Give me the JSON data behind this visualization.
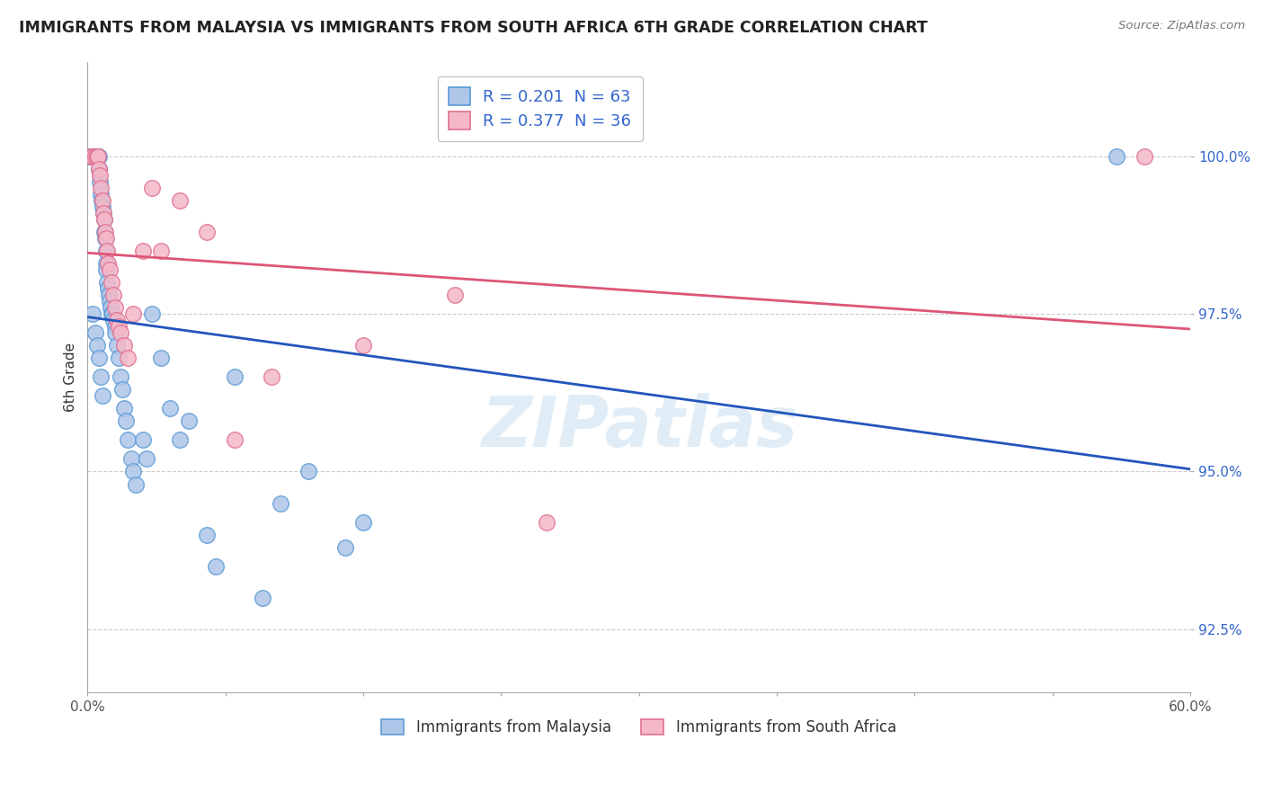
{
  "title": "IMMIGRANTS FROM MALAYSIA VS IMMIGRANTS FROM SOUTH AFRICA 6TH GRADE CORRELATION CHART",
  "source": "Source: ZipAtlas.com",
  "ylabel": "6th Grade",
  "xlim": [
    0.0,
    60.0
  ],
  "ylim": [
    91.5,
    101.5
  ],
  "yticks": [
    92.5,
    95.0,
    97.5,
    100.0
  ],
  "ytick_labels": [
    "92.5%",
    "95.0%",
    "97.5%",
    "100.0%"
  ],
  "xtick_positions": [
    0.0,
    7.5,
    15.0,
    22.5,
    30.0,
    37.5,
    45.0,
    52.5,
    60.0
  ],
  "xlabels_show": [
    "0.0%",
    "60.0%"
  ],
  "malaysia_color": "#aec6e8",
  "malaysia_edge": "#5b9bd5",
  "sa_color": "#f4b8c8",
  "sa_edge": "#e07090",
  "malaysia_R": 0.201,
  "malaysia_N": 63,
  "sa_R": 0.377,
  "sa_N": 36,
  "malaysia_x": [
    0.15,
    0.2,
    0.25,
    0.3,
    0.35,
    0.4,
    0.5,
    0.55,
    0.6,
    0.6,
    0.65,
    0.7,
    0.75,
    0.8,
    0.85,
    0.9,
    0.9,
    0.95,
    1.0,
    1.0,
    1.0,
    1.05,
    1.1,
    1.15,
    1.2,
    1.25,
    1.3,
    1.35,
    1.4,
    1.5,
    1.5,
    1.6,
    1.7,
    1.8,
    1.9,
    2.0,
    2.1,
    2.2,
    2.4,
    2.5,
    2.6,
    3.0,
    3.2,
    3.5,
    4.0,
    4.5,
    5.0,
    5.5,
    6.5,
    7.0,
    8.0,
    9.5,
    10.5,
    12.0,
    14.0,
    15.0,
    0.3,
    0.4,
    0.5,
    0.6,
    0.7,
    0.8,
    56.0
  ],
  "malaysia_y": [
    100.0,
    100.0,
    100.0,
    100.0,
    100.0,
    100.0,
    100.0,
    100.0,
    100.0,
    99.8,
    99.6,
    99.4,
    99.3,
    99.2,
    99.1,
    99.0,
    98.8,
    98.7,
    98.5,
    98.3,
    98.2,
    98.0,
    97.9,
    97.8,
    97.7,
    97.6,
    97.5,
    97.5,
    97.4,
    97.3,
    97.2,
    97.0,
    96.8,
    96.5,
    96.3,
    96.0,
    95.8,
    95.5,
    95.2,
    95.0,
    94.8,
    95.5,
    95.2,
    97.5,
    96.8,
    96.0,
    95.5,
    95.8,
    94.0,
    93.5,
    96.5,
    93.0,
    94.5,
    95.0,
    93.8,
    94.2,
    97.5,
    97.2,
    97.0,
    96.8,
    96.5,
    96.2,
    100.0
  ],
  "sa_x": [
    0.2,
    0.3,
    0.4,
    0.5,
    0.55,
    0.6,
    0.65,
    0.7,
    0.8,
    0.85,
    0.9,
    0.95,
    1.0,
    1.05,
    1.1,
    1.2,
    1.3,
    1.4,
    1.5,
    1.6,
    1.7,
    1.8,
    2.0,
    2.2,
    2.5,
    3.0,
    3.5,
    4.0,
    5.0,
    6.5,
    8.0,
    10.0,
    15.0,
    20.0,
    25.0,
    57.5
  ],
  "sa_y": [
    100.0,
    100.0,
    100.0,
    100.0,
    100.0,
    99.8,
    99.7,
    99.5,
    99.3,
    99.1,
    99.0,
    98.8,
    98.7,
    98.5,
    98.3,
    98.2,
    98.0,
    97.8,
    97.6,
    97.4,
    97.3,
    97.2,
    97.0,
    96.8,
    97.5,
    98.5,
    99.5,
    98.5,
    99.3,
    98.8,
    95.5,
    96.5,
    97.0,
    97.8,
    94.2,
    100.0
  ],
  "watermark_text": "ZIPatlas",
  "trend_blue_color": "#2255bb",
  "trend_pink_color": "#dd5577",
  "background_color": "#ffffff",
  "legend_label_color": "#3366cc"
}
